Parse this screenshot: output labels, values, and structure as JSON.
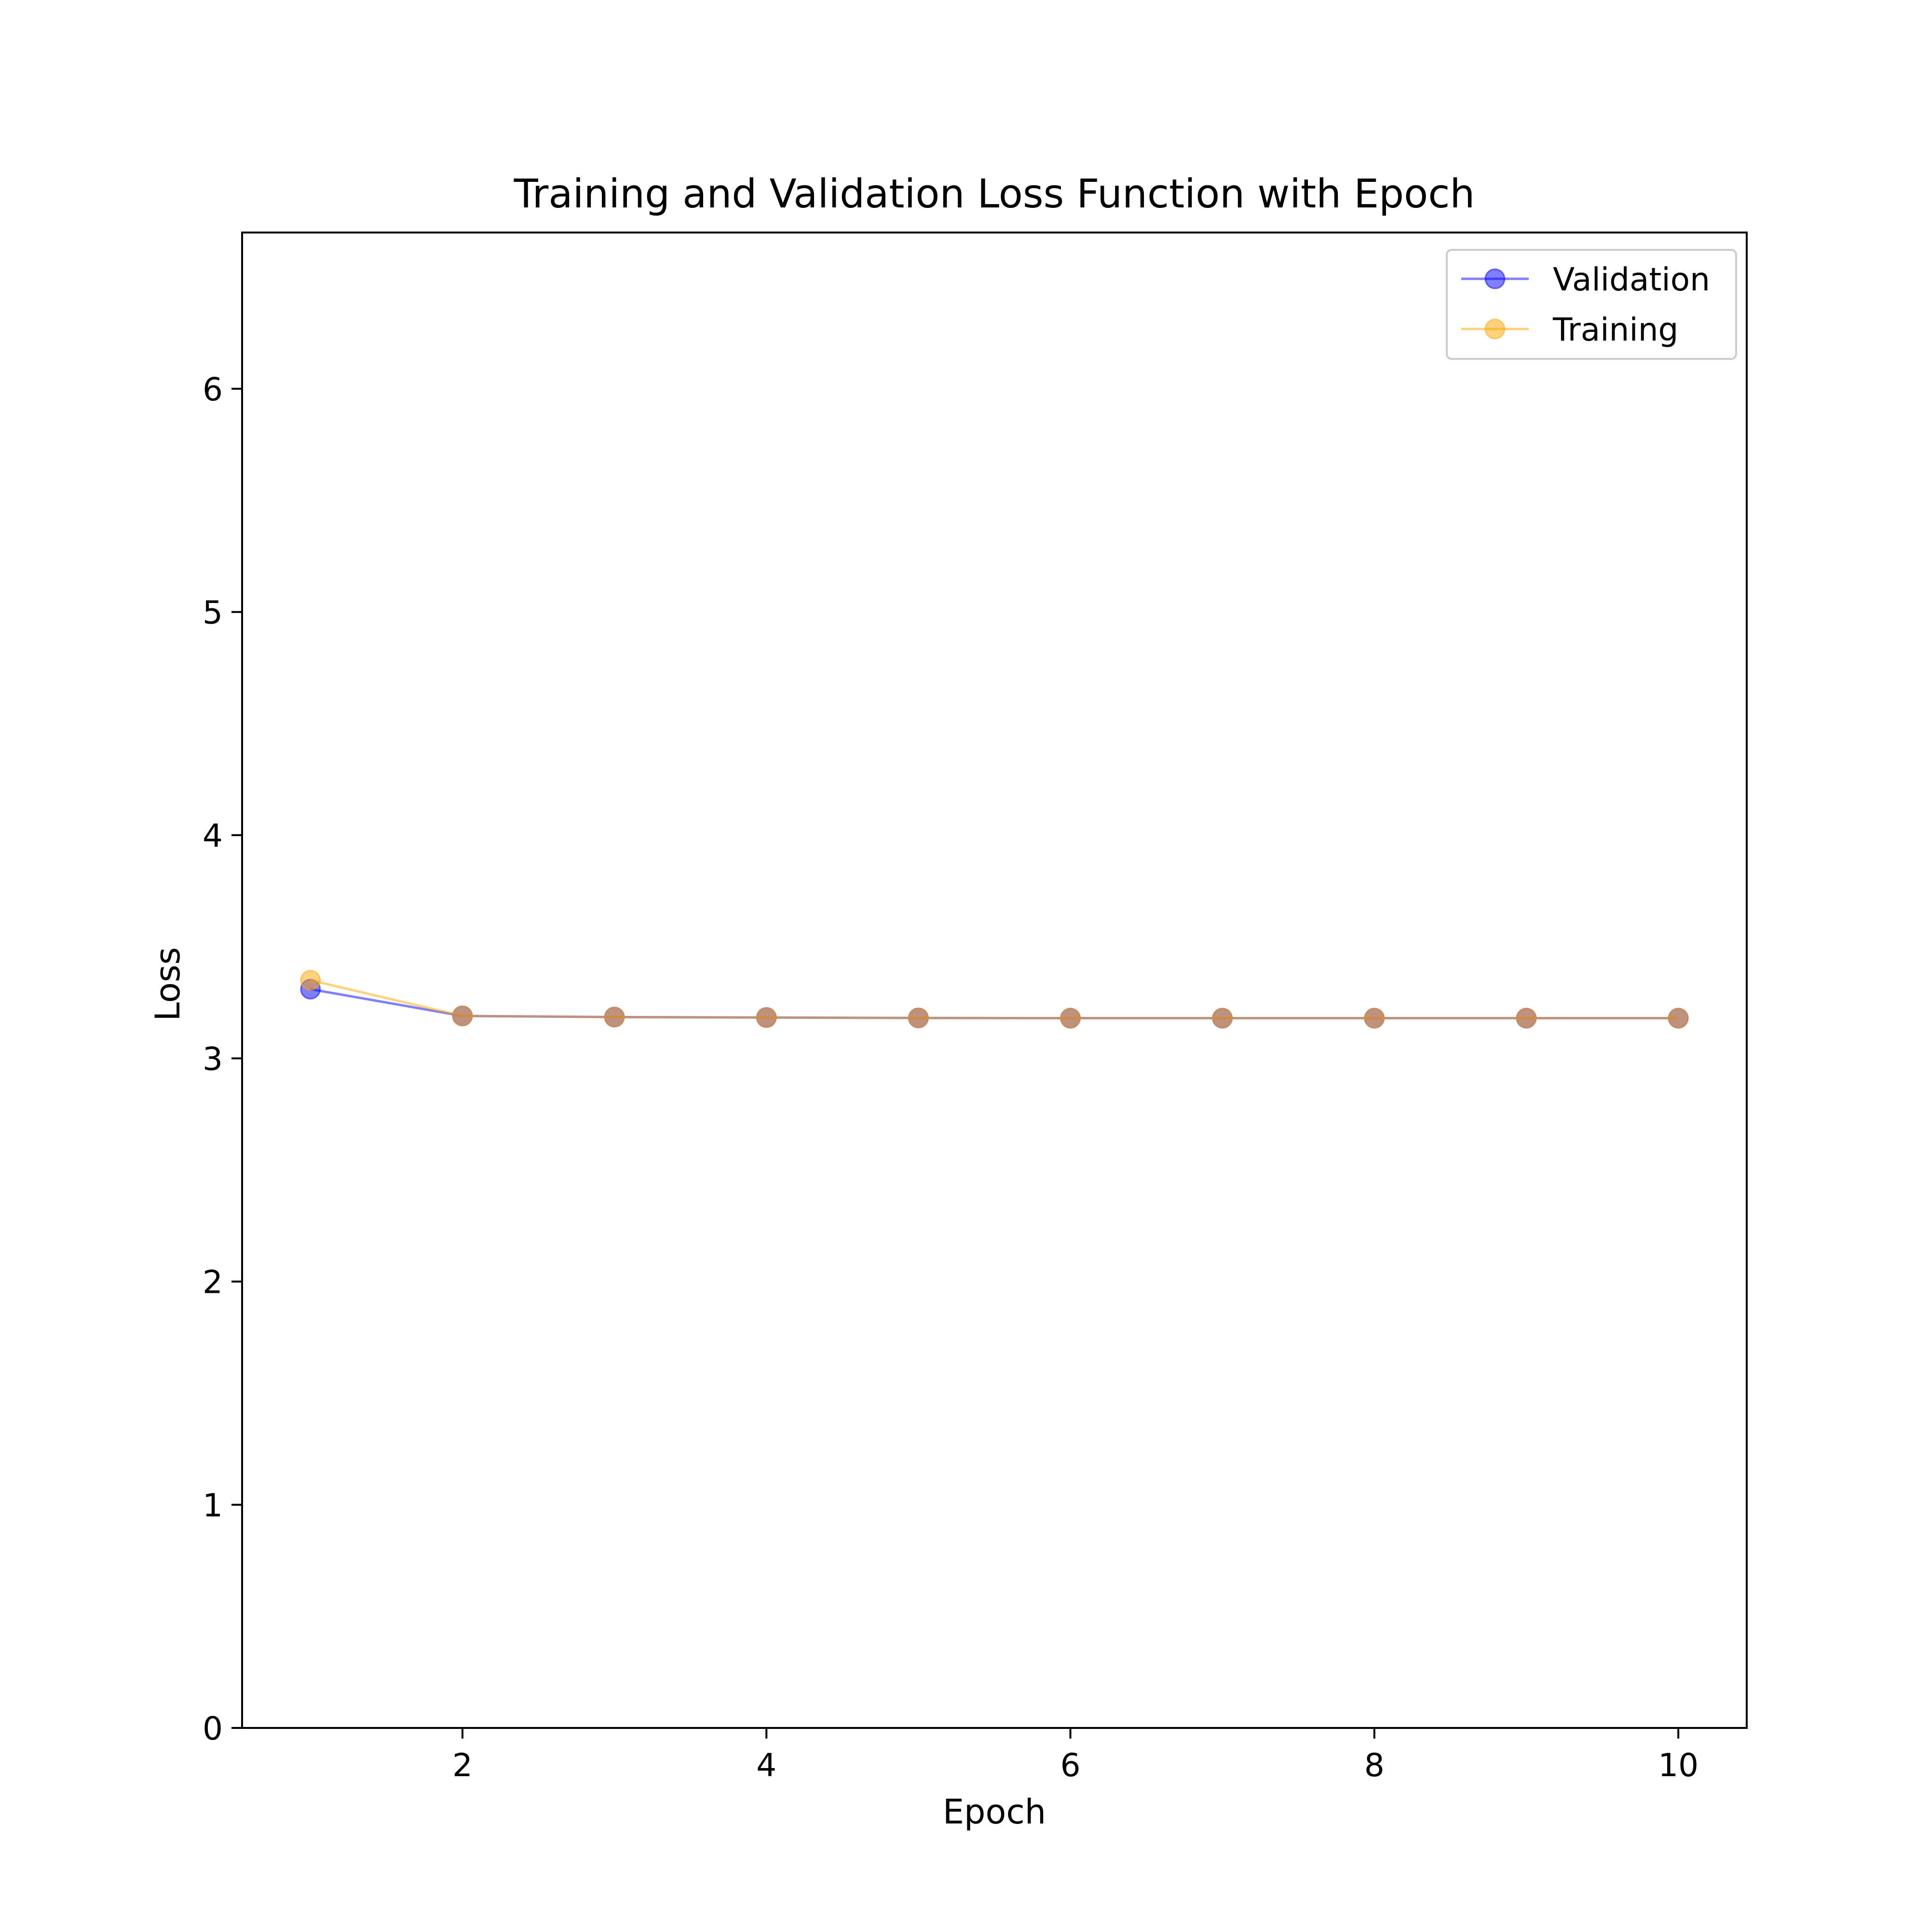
{
  "chart_data": {
    "type": "line",
    "title": "Training and Validation Loss Function with Epoch",
    "xlabel": "Epoch",
    "ylabel": "Loss",
    "xlim": [
      0.55,
      10.45
    ],
    "ylim": [
      0,
      6.7
    ],
    "xticks": [
      2,
      4,
      6,
      8,
      10
    ],
    "yticks": [
      0,
      1,
      2,
      3,
      4,
      5,
      6
    ],
    "grid": false,
    "legend_position": "top-right",
    "x": [
      1,
      2,
      3,
      4,
      5,
      6,
      7,
      8,
      9,
      10
    ],
    "series": [
      {
        "name": "Validation",
        "color": "#0000ff",
        "marker": "circle",
        "values": [
          3.31,
          3.19,
          3.185,
          3.183,
          3.181,
          3.18,
          3.18,
          3.18,
          3.18,
          3.18
        ]
      },
      {
        "name": "Training",
        "color": "#ffa500",
        "marker": "circle",
        "values": [
          3.35,
          3.19,
          3.185,
          3.183,
          3.181,
          3.18,
          3.18,
          3.18,
          3.18,
          3.18
        ]
      }
    ]
  }
}
